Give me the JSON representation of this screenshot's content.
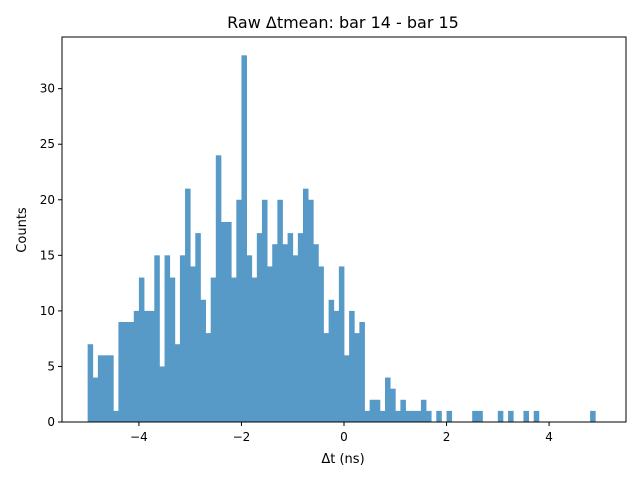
{
  "chart_data": {
    "type": "bar",
    "title": "Raw Δtmean: bar 14 - bar 15",
    "xlabel": "Δt (ns)",
    "ylabel": "Counts",
    "xlim": [
      -5.5,
      5.5
    ],
    "ylim": [
      0,
      34.65
    ],
    "xticks": [
      -4,
      -2,
      0,
      2,
      4
    ],
    "xtick_labels": [
      "−4",
      "−2",
      "0",
      "2",
      "4"
    ],
    "yticks": [
      0,
      5,
      10,
      15,
      20,
      25,
      30
    ],
    "yticks_labels": [
      "0",
      "5",
      "10",
      "15",
      "20",
      "25",
      "30"
    ],
    "grid": false,
    "color": "#5799c7",
    "bin_start": -5.0,
    "bin_width": 0.1,
    "values": [
      7,
      4,
      6,
      6,
      6,
      1,
      9,
      9,
      9,
      10,
      13,
      10,
      10,
      15,
      5,
      15,
      13,
      7,
      15,
      21,
      14,
      17,
      11,
      8,
      13,
      24,
      18,
      18,
      13,
      20,
      33,
      15,
      13,
      17,
      20,
      14,
      16,
      20,
      16,
      17,
      15,
      17,
      21,
      20,
      16,
      14,
      8,
      11,
      10,
      14,
      6,
      10,
      8,
      9,
      1,
      2,
      2,
      1,
      4,
      3,
      1,
      2,
      1,
      1,
      1,
      2,
      1,
      0,
      1,
      0,
      1,
      0,
      0,
      0,
      0,
      1,
      1,
      0,
      0,
      0,
      1,
      0,
      1,
      0,
      0,
      1,
      0,
      1,
      0,
      0,
      0,
      0,
      0,
      0,
      0,
      0,
      0,
      0,
      1,
      0
    ]
  }
}
